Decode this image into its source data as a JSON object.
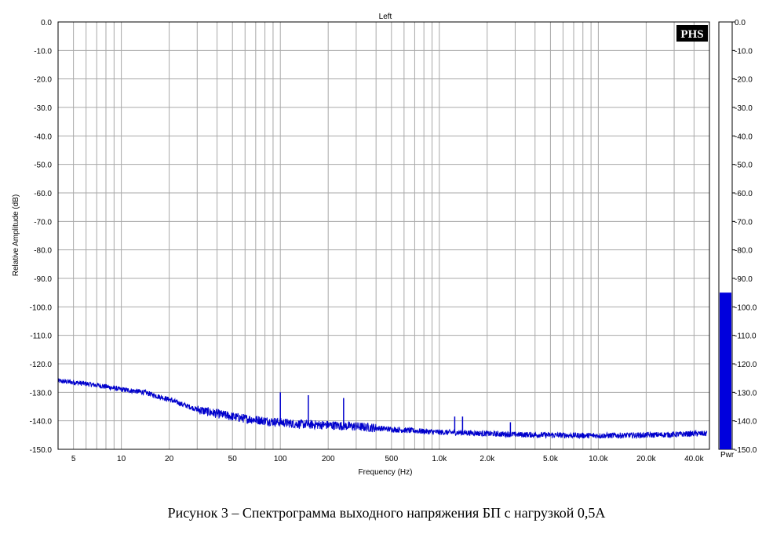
{
  "chart_data": {
    "type": "line",
    "title": "Left",
    "xlabel": "Frequency (Hz)",
    "ylabel": "Relative Amplitude (dB)",
    "x_scale": "log",
    "xlim": [
      4,
      50000
    ],
    "ylim": [
      -150,
      0
    ],
    "grid": true,
    "x_ticks": [
      {
        "value": 5,
        "label": "5"
      },
      {
        "value": 10,
        "label": "10"
      },
      {
        "value": 20,
        "label": "20"
      },
      {
        "value": 50,
        "label": "50"
      },
      {
        "value": 100,
        "label": "100"
      },
      {
        "value": 200,
        "label": "200"
      },
      {
        "value": 500,
        "label": "500"
      },
      {
        "value": 1000,
        "label": "1.0k"
      },
      {
        "value": 2000,
        "label": "2.0k"
      },
      {
        "value": 5000,
        "label": "5.0k"
      },
      {
        "value": 10000,
        "label": "10.0k"
      },
      {
        "value": 20000,
        "label": "20.0k"
      },
      {
        "value": 40000,
        "label": "40.0k"
      }
    ],
    "y_ticks": [
      "0.0",
      "-10.0",
      "-20.0",
      "-30.0",
      "-40.0",
      "-50.0",
      "-60.0",
      "-70.0",
      "-80.0",
      "-90.0",
      "-100.0",
      "-110.0",
      "-120.0",
      "-130.0",
      "-140.0",
      "-150.0"
    ],
    "line_color": "#0000cc",
    "series": [
      {
        "x": [
          4,
          5,
          6,
          7,
          8,
          10,
          12,
          14,
          16,
          20,
          25,
          30,
          40,
          50,
          60,
          80,
          100,
          120,
          150,
          200,
          300,
          400,
          500,
          700,
          1000,
          1500,
          2000,
          3000,
          5000,
          7000,
          10000,
          15000,
          20000,
          30000,
          40000,
          48000
        ],
        "y": [
          -126,
          -126.5,
          -127,
          -127.5,
          -128,
          -129,
          -129.5,
          -130,
          -131,
          -132.5,
          -134.5,
          -136,
          -137.5,
          -138.5,
          -139.2,
          -140,
          -140.5,
          -141,
          -141.3,
          -141.5,
          -142,
          -142.5,
          -143,
          -143.5,
          -144,
          -144.2,
          -144.5,
          -144.8,
          -145,
          -145.1,
          -145.2,
          -145.1,
          -145,
          -144.8,
          -144.5,
          -144.5
        ]
      }
    ],
    "spikes": [
      {
        "x": 100,
        "y": -130
      },
      {
        "x": 150,
        "y": -131
      },
      {
        "x": 250,
        "y": -132
      },
      {
        "x": 1250,
        "y": -138.5
      },
      {
        "x": 1400,
        "y": -138.5
      },
      {
        "x": 2800,
        "y": -140.5
      }
    ]
  },
  "logo": {
    "text": "PHS"
  },
  "meter": {
    "label": "Pwr",
    "level_db": -95,
    "ticks": [
      "0.0",
      "-10.0",
      "-20.0",
      "-30.0",
      "-40.0",
      "-50.0",
      "-60.0",
      "-70.0",
      "-80.0",
      "-90.0",
      "-100.0",
      "-110.0",
      "-120.0",
      "-130.0",
      "-140.0",
      "-150.0"
    ],
    "fill_color": "#0000dd"
  },
  "caption": "Рисунок 3 – Спектрограмма выходного напряжения БП с нагрузкой 0,5А"
}
